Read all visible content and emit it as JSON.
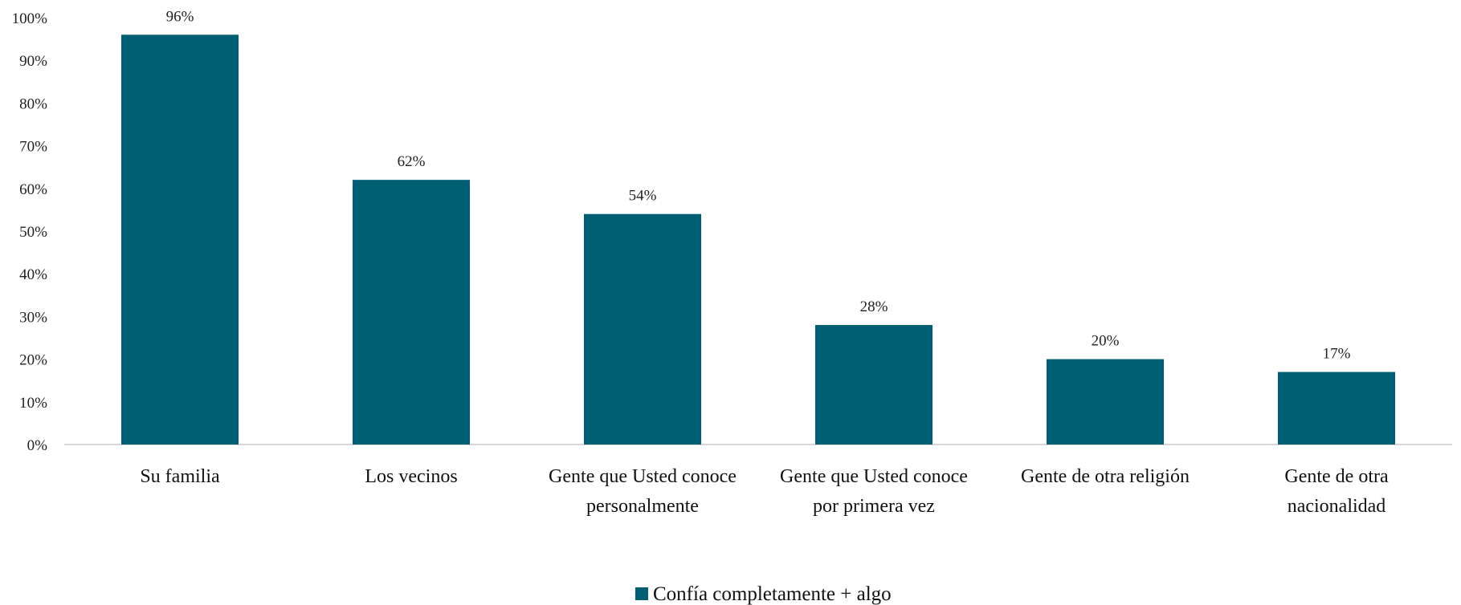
{
  "chart_data": {
    "type": "bar",
    "title": "",
    "xlabel": "",
    "ylabel": "",
    "categories": [
      [
        "Su familia"
      ],
      [
        "Los vecinos"
      ],
      [
        "Gente que Usted conoce",
        "personalmente"
      ],
      [
        "Gente que Usted conoce",
        "por primera vez"
      ],
      [
        "Gente de otra religión"
      ],
      [
        "Gente de otra",
        "nacionalidad"
      ]
    ],
    "series": [
      {
        "name": "Confía completamente + algo",
        "values": [
          96,
          62,
          54,
          28,
          20,
          17
        ],
        "color": "#005F73"
      }
    ],
    "data_labels": [
      "96%",
      "62%",
      "54%",
      "28%",
      "20%",
      "17%"
    ],
    "y_ticks": [
      "0%",
      "10%",
      "20%",
      "30%",
      "40%",
      "50%",
      "60%",
      "70%",
      "80%",
      "90%",
      "100%"
    ],
    "ylim": [
      0,
      100
    ],
    "grid": false,
    "legend_position": "bottom-center"
  }
}
